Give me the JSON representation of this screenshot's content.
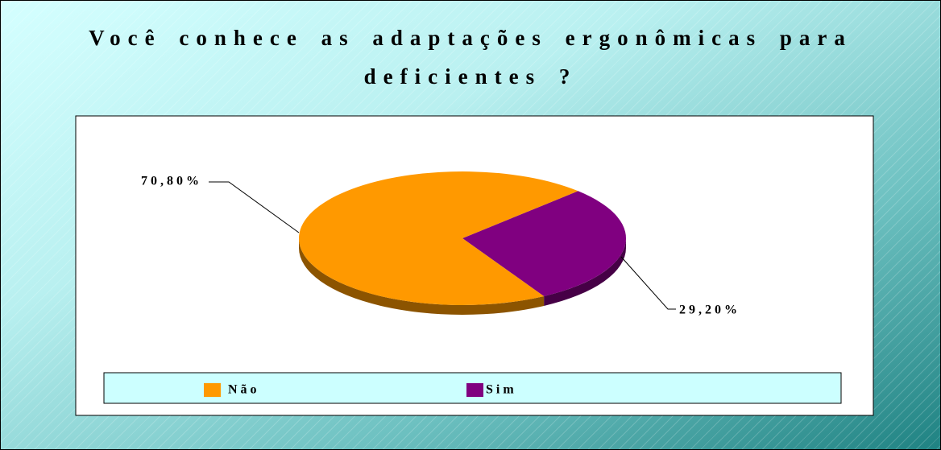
{
  "chart_data": {
    "type": "pie",
    "title": "Você conhece as adaptações ergonômicas para deficientes ?",
    "categories": [
      "Não",
      "Sim"
    ],
    "values": [
      70.8,
      29.2
    ],
    "value_labels": [
      "70,80%",
      "29,20%"
    ],
    "colors": [
      "#ff9900",
      "#800080"
    ],
    "legend": "bottom"
  }
}
